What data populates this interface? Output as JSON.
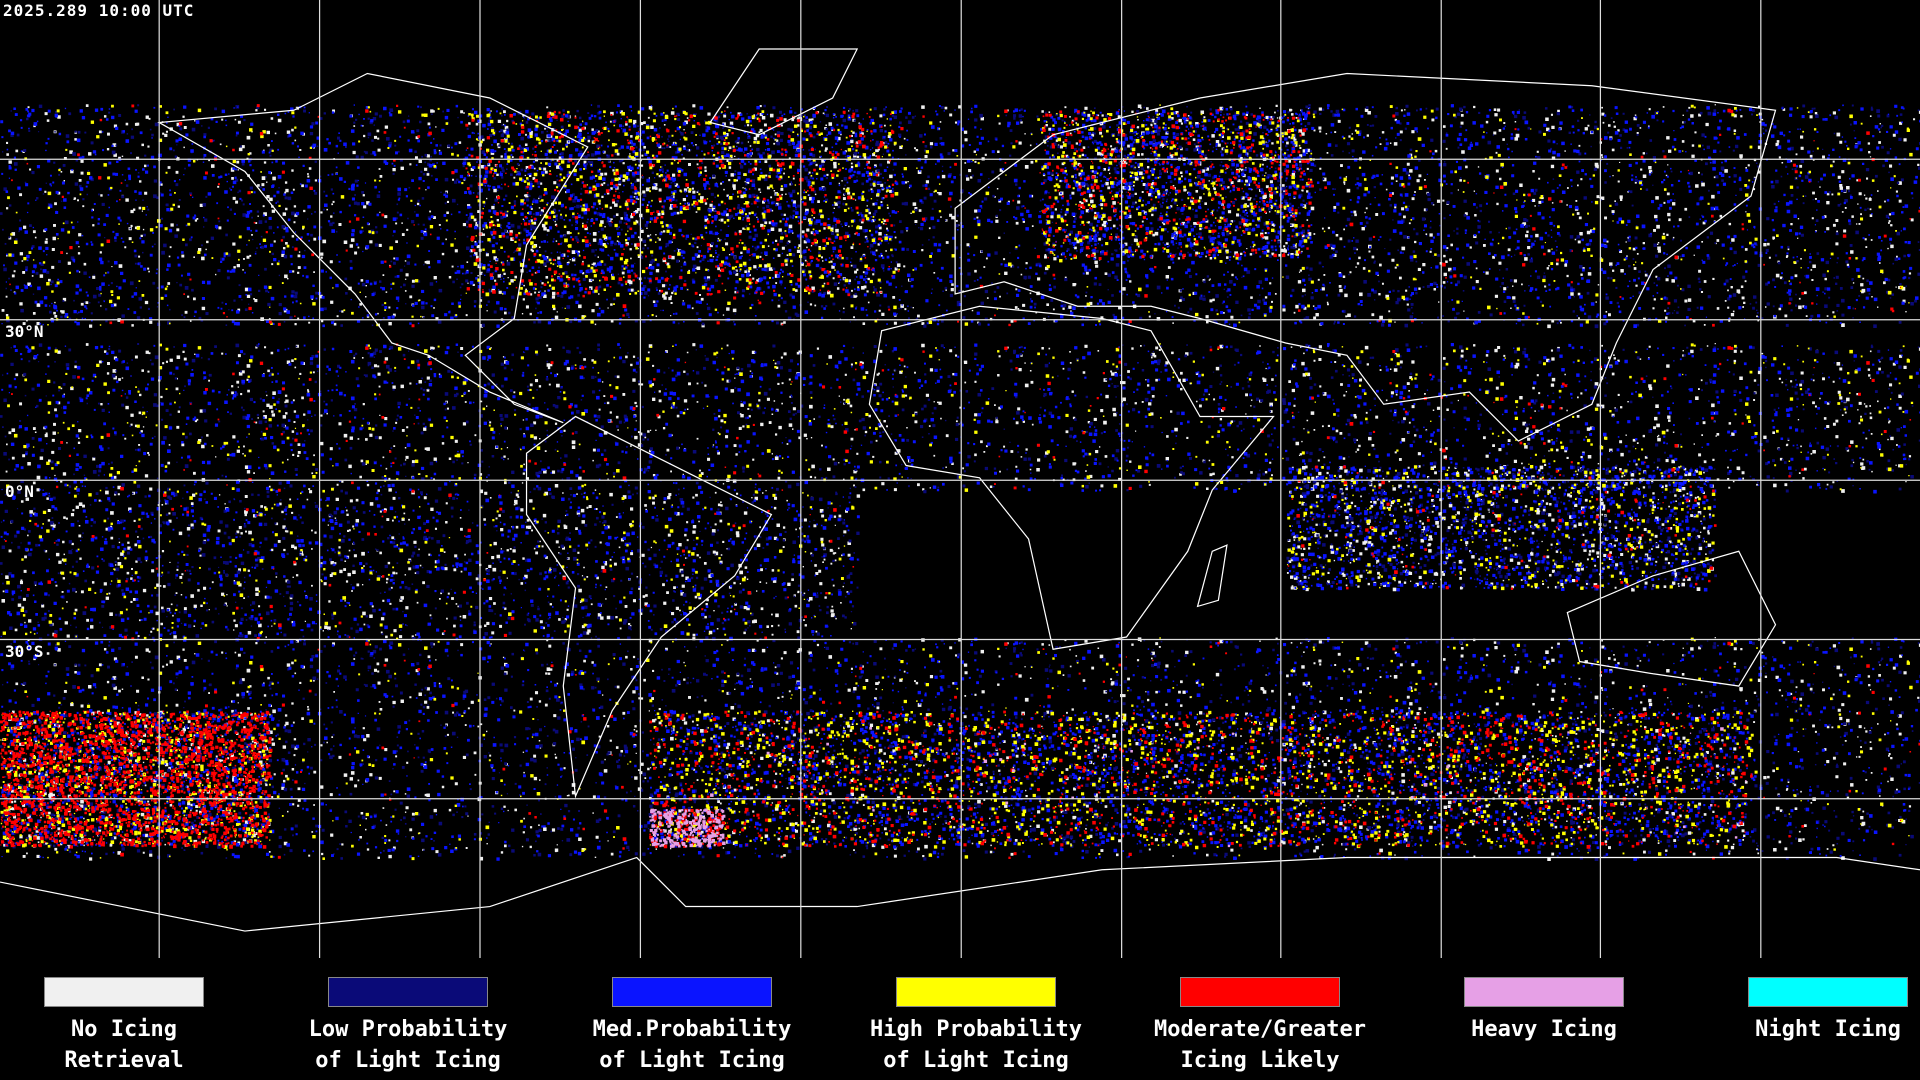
{
  "header": {
    "timestamp": "2025.289 10:00 UTC"
  },
  "map": {
    "latitude_labels": [
      "30°N",
      "0°N",
      "30°S"
    ]
  },
  "legend": [
    {
      "label_lines": [
        "No Icing",
        "Retrieval"
      ],
      "color": "#f0f0f0"
    },
    {
      "label_lines": [
        "Low Probability",
        "of Light Icing"
      ],
      "color": "#0a0a78"
    },
    {
      "label_lines": [
        "Med.Probability",
        "of Light Icing"
      ],
      "color": "#0a14ff"
    },
    {
      "label_lines": [
        "High Probability",
        "of Light Icing"
      ],
      "color": "#ffff00"
    },
    {
      "label_lines": [
        "Moderate/Greater",
        "Icing Likely"
      ],
      "color": "#ff0000"
    },
    {
      "label_lines": [
        "Heavy Icing"
      ],
      "color": "#e6a0e6"
    },
    {
      "label_lines": [
        "Night Icing"
      ],
      "color": "#00ffff"
    }
  ]
}
